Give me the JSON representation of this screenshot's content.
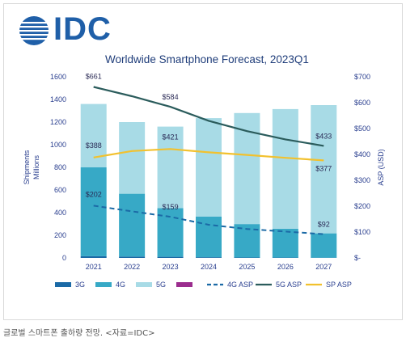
{
  "logo": {
    "text": "IDC"
  },
  "caption": "글로벌 스마트폰 출하량 전망. <자료=IDC>",
  "colors": {
    "g3": "#1b6aa6",
    "g4": "#37a9c6",
    "g5": "#a8dbe6",
    "g4asp": "#1b6aa6",
    "g5asp": "#2b5c5c",
    "spasp": "#f2c12e",
    "title": "#1f3d7a",
    "text": "#2a3f8f"
  },
  "chart_data": {
    "type": "bar",
    "title": "Worldwide Smartphone Forecast, 2023Q1",
    "categories": [
      "2021",
      "2022",
      "2023",
      "2024",
      "2025",
      "2026",
      "2027"
    ],
    "ylabel": "Shipments Millions",
    "y2label": "ASP (USD)",
    "ylim": [
      0,
      1600
    ],
    "y2lim": [
      0,
      700
    ],
    "yticks": [
      "0",
      "200",
      "400",
      "600",
      "800",
      "1000",
      "1200",
      "1400",
      "1600"
    ],
    "y2ticks": [
      "$-",
      "$100",
      "$200",
      "$300",
      "$400",
      "$500",
      "$600",
      "$700"
    ],
    "stacked_series": [
      {
        "name": "3G",
        "key": "g3",
        "values": [
          15,
          12,
          10,
          6,
          4,
          3,
          2
        ]
      },
      {
        "name": "4G",
        "key": "g4",
        "values": [
          785,
          555,
          430,
          360,
          295,
          255,
          215
        ]
      },
      {
        "name": "5G",
        "key": "g5",
        "values": [
          560,
          633,
          720,
          869,
          981,
          1057,
          1133
        ]
      },
      {
        "name": "",
        "key": "other",
        "values": [
          0,
          0,
          0,
          0,
          0,
          0,
          0
        ]
      }
    ],
    "line_series": [
      {
        "name": "4G ASP",
        "key": "g4asp",
        "dash": true,
        "values": [
          202,
          180,
          159,
          128,
          112,
          102,
          92
        ]
      },
      {
        "name": "5G ASP",
        "key": "g5asp",
        "dash": false,
        "values": [
          661,
          625,
          584,
          530,
          490,
          458,
          433
        ]
      },
      {
        "name": "SP ASP",
        "key": "spasp",
        "dash": false,
        "values": [
          388,
          413,
          421,
          408,
          398,
          387,
          377
        ]
      }
    ],
    "data_labels": [
      {
        "series": "5G ASP",
        "index": 0,
        "text": "$661"
      },
      {
        "series": "5G ASP",
        "index": 2,
        "text": "$584"
      },
      {
        "series": "5G ASP",
        "index": 6,
        "text": "$433"
      },
      {
        "series": "SP ASP",
        "index": 0,
        "text": "$388"
      },
      {
        "series": "SP ASP",
        "index": 2,
        "text": "$421"
      },
      {
        "series": "SP ASP",
        "index": 6,
        "text": "$377"
      },
      {
        "series": "4G ASP",
        "index": 0,
        "text": "$202"
      },
      {
        "series": "4G ASP",
        "index": 2,
        "text": "$159"
      },
      {
        "series": "4G ASP",
        "index": 6,
        "text": "$92"
      }
    ],
    "legend": [
      {
        "name": "3G",
        "key": "g3",
        "kind": "bar"
      },
      {
        "name": "4G",
        "key": "g4",
        "kind": "bar"
      },
      {
        "name": "5G",
        "key": "g5",
        "kind": "bar"
      },
      {
        "name": "",
        "key": "other",
        "kind": "bar"
      },
      {
        "name": "4G ASP",
        "key": "g4asp",
        "kind": "dash"
      },
      {
        "name": "5G ASP",
        "key": "g5asp",
        "kind": "line"
      },
      {
        "name": "SP ASP",
        "key": "spasp",
        "kind": "line"
      }
    ],
    "legend_position": "bottom",
    "grid": false
  }
}
